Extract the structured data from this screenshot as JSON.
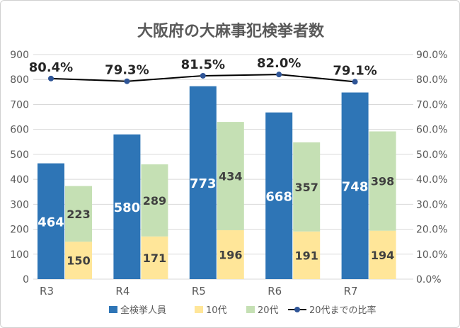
{
  "chart_data": {
    "type": "bar",
    "title": "大阪府の大麻事犯検挙者数",
    "categories": [
      "R3",
      "R4",
      "R5",
      "R6",
      "R7"
    ],
    "series": [
      {
        "name": "全検挙人員",
        "kind": "bar",
        "color": "#2e75b6",
        "values": [
          464,
          580,
          773,
          668,
          748
        ],
        "labels": [
          "464",
          "580",
          "773",
          "668",
          "748"
        ]
      },
      {
        "name": "10代",
        "kind": "stacked-bar",
        "color": "#ffe699",
        "values": [
          150,
          171,
          196,
          191,
          194
        ],
        "labels": [
          "150",
          "171",
          "196",
          "191",
          "194"
        ]
      },
      {
        "name": "20代",
        "kind": "stacked-bar",
        "color": "#c5e0b4",
        "values": [
          223,
          289,
          434,
          357,
          398
        ],
        "labels": [
          "223",
          "289",
          "434",
          "357",
          "398"
        ]
      },
      {
        "name": "20代までの比率",
        "kind": "line",
        "axis": "right",
        "color": "#000000",
        "marker_color": "#2f5597",
        "values": [
          80.4,
          79.3,
          81.5,
          82.0,
          79.1
        ],
        "labels": [
          "80.4%",
          "79.3%",
          "81.5%",
          "82.0%",
          "79.1%"
        ]
      }
    ],
    "ylim": [
      0,
      900
    ],
    "yticks": [
      "0",
      "100",
      "200",
      "300",
      "400",
      "500",
      "600",
      "700",
      "800",
      "900"
    ],
    "y2lim": [
      0,
      90
    ],
    "y2ticks": [
      "0.0%",
      "10.0%",
      "20.0%",
      "30.0%",
      "40.0%",
      "50.0%",
      "60.0%",
      "70.0%",
      "80.0%",
      "90.0%"
    ],
    "grid": true,
    "legend": "bottom"
  }
}
